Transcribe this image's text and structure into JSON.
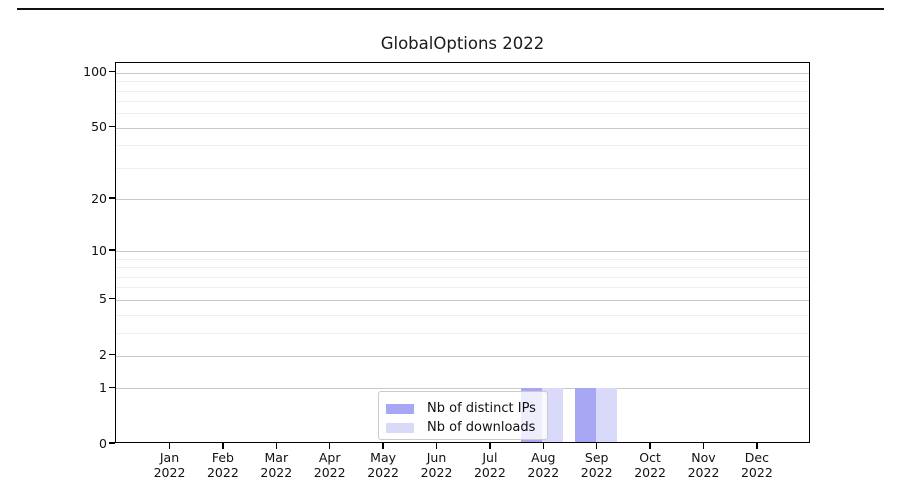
{
  "page": {
    "background": "#ffffff",
    "top_divider_color": "#111111"
  },
  "chart_data": {
    "type": "bar",
    "title": "GlobalOptions 2022",
    "categories": [
      "Jan",
      "Feb",
      "Mar",
      "Apr",
      "May",
      "Jun",
      "Jul",
      "Aug",
      "Sep",
      "Oct",
      "Nov",
      "Dec"
    ],
    "year_label": "2022",
    "series": [
      {
        "name": "Nb of distinct IPs",
        "color": "#a7a7f3",
        "values": [
          0,
          0,
          0,
          0,
          0,
          0,
          0,
          1,
          1,
          0,
          0,
          0
        ]
      },
      {
        "name": "Nb of downloads",
        "color": "#d9d9fa",
        "values": [
          0,
          0,
          0,
          0,
          0,
          0,
          0,
          1,
          1,
          0,
          0,
          0
        ]
      }
    ],
    "y_axis": {
      "scale": "log1p",
      "max": 100,
      "ticks": [
        0,
        1,
        2,
        5,
        10,
        20,
        50,
        100
      ],
      "minor_ticks": [
        3,
        4,
        6,
        7,
        8,
        9,
        30,
        40,
        60,
        70,
        80,
        90
      ]
    },
    "x_axis": {
      "tick_years": "2022"
    },
    "grid": true,
    "legend": {
      "position": "lower-center",
      "frame_alpha": 0.8
    },
    "colors": {
      "major_grid": "#c9c9c9",
      "minor_grid": "#efefef",
      "spine": "#000000"
    }
  }
}
